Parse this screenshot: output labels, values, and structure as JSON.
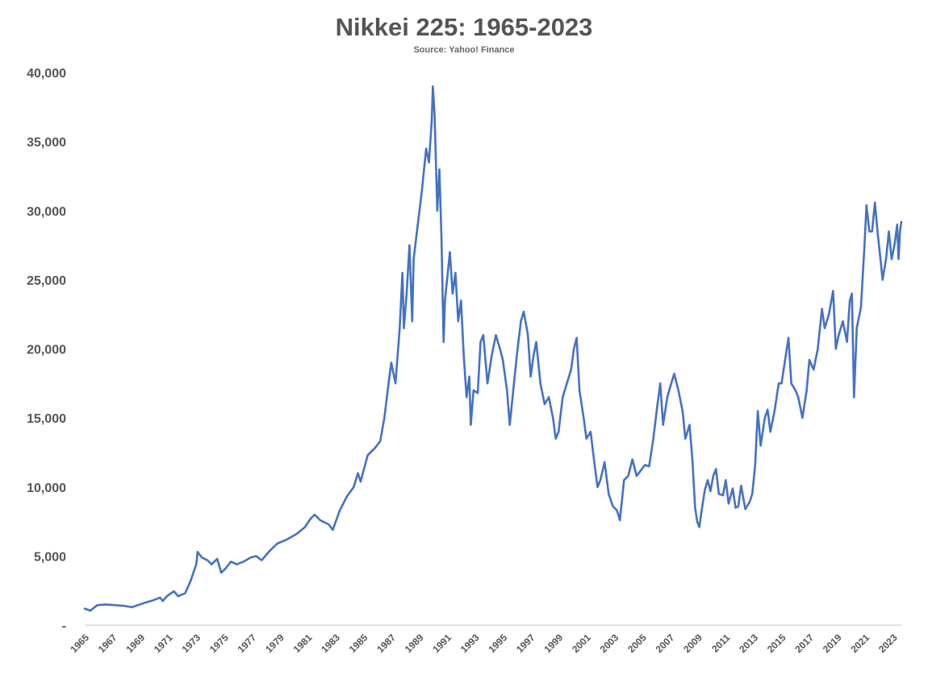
{
  "chart_data": {
    "type": "line",
    "title": "Nikkei 225: 1965-2023",
    "subtitle": "Source: Yahoo! Finance",
    "xlabel": "",
    "ylabel": "",
    "xlim": [
      1965,
      2023.6
    ],
    "ylim": [
      0,
      40000
    ],
    "grid": false,
    "line_color": "#4472C4",
    "axis_color": "#D9D9D9",
    "ytick_labels": [
      "-",
      "5,000",
      "10,000",
      "15,000",
      "20,000",
      "25,000",
      "30,000",
      "35,000",
      "40,000"
    ],
    "ytick_values": [
      0,
      5000,
      10000,
      15000,
      20000,
      25000,
      30000,
      35000,
      40000
    ],
    "xtick_labels": [
      "1965",
      "1967",
      "1969",
      "1971",
      "1973",
      "1975",
      "1977",
      "1979",
      "1981",
      "1983",
      "1985",
      "1987",
      "1989",
      "1991",
      "1993",
      "1995",
      "1997",
      "1999",
      "2001",
      "2003",
      "2005",
      "2007",
      "2009",
      "2011",
      "2013",
      "2015",
      "2017",
      "2019",
      "2021",
      "2023"
    ],
    "series": [
      {
        "values": [
          [
            1965.0,
            1200
          ],
          [
            1965.4,
            1050
          ],
          [
            1965.9,
            1450
          ],
          [
            1966.5,
            1500
          ],
          [
            1967.2,
            1450
          ],
          [
            1967.8,
            1400
          ],
          [
            1968.4,
            1300
          ],
          [
            1968.8,
            1450
          ],
          [
            1969.4,
            1650
          ],
          [
            1969.9,
            1800
          ],
          [
            1970.4,
            2000
          ],
          [
            1970.6,
            1750
          ],
          [
            1970.9,
            2100
          ],
          [
            1971.4,
            2450
          ],
          [
            1971.7,
            2100
          ],
          [
            1972.2,
            2300
          ],
          [
            1972.6,
            3200
          ],
          [
            1973.0,
            4400
          ],
          [
            1973.1,
            5300
          ],
          [
            1973.4,
            4900
          ],
          [
            1973.8,
            4700
          ],
          [
            1974.1,
            4400
          ],
          [
            1974.5,
            4800
          ],
          [
            1974.8,
            3800
          ],
          [
            1975.1,
            4100
          ],
          [
            1975.5,
            4600
          ],
          [
            1975.9,
            4400
          ],
          [
            1976.4,
            4600
          ],
          [
            1976.9,
            4900
          ],
          [
            1977.3,
            5000
          ],
          [
            1977.7,
            4700
          ],
          [
            1978.2,
            5300
          ],
          [
            1978.8,
            5900
          ],
          [
            1979.5,
            6200
          ],
          [
            1980.2,
            6600
          ],
          [
            1980.8,
            7100
          ],
          [
            1981.2,
            7700
          ],
          [
            1981.5,
            8000
          ],
          [
            1981.9,
            7600
          ],
          [
            1982.5,
            7300
          ],
          [
            1982.8,
            6900
          ],
          [
            1983.3,
            8300
          ],
          [
            1983.8,
            9300
          ],
          [
            1984.3,
            10000
          ],
          [
            1984.6,
            11000
          ],
          [
            1984.8,
            10400
          ],
          [
            1985.3,
            12300
          ],
          [
            1985.8,
            12800
          ],
          [
            1986.2,
            13300
          ],
          [
            1986.5,
            15000
          ],
          [
            1986.8,
            17500
          ],
          [
            1987.0,
            19000
          ],
          [
            1987.3,
            17500
          ],
          [
            1987.6,
            21500
          ],
          [
            1987.8,
            25500
          ],
          [
            1987.9,
            21500
          ],
          [
            1988.1,
            24000
          ],
          [
            1988.3,
            27500
          ],
          [
            1988.5,
            22000
          ],
          [
            1988.6,
            26500
          ],
          [
            1988.9,
            29000
          ],
          [
            1989.2,
            31500
          ],
          [
            1989.5,
            34500
          ],
          [
            1989.7,
            33500
          ],
          [
            1989.9,
            36500
          ],
          [
            1989.98,
            39000
          ],
          [
            1990.1,
            37000
          ],
          [
            1990.3,
            30000
          ],
          [
            1990.45,
            33000
          ],
          [
            1990.6,
            28000
          ],
          [
            1990.75,
            20500
          ],
          [
            1990.85,
            23500
          ],
          [
            1991.0,
            25000
          ],
          [
            1991.2,
            27000
          ],
          [
            1991.4,
            24000
          ],
          [
            1991.6,
            25500
          ],
          [
            1991.8,
            22000
          ],
          [
            1992.0,
            23500
          ],
          [
            1992.2,
            19500
          ],
          [
            1992.4,
            16500
          ],
          [
            1992.6,
            18000
          ],
          [
            1992.7,
            14500
          ],
          [
            1992.9,
            17000
          ],
          [
            1993.2,
            16800
          ],
          [
            1993.4,
            20500
          ],
          [
            1993.6,
            21000
          ],
          [
            1993.9,
            17500
          ],
          [
            1994.2,
            19500
          ],
          [
            1994.5,
            21000
          ],
          [
            1994.8,
            20000
          ],
          [
            1995.0,
            19200
          ],
          [
            1995.3,
            17000
          ],
          [
            1995.5,
            14500
          ],
          [
            1995.8,
            17500
          ],
          [
            1996.0,
            19500
          ],
          [
            1996.3,
            22000
          ],
          [
            1996.5,
            22700
          ],
          [
            1996.8,
            21000
          ],
          [
            1997.0,
            18000
          ],
          [
            1997.2,
            19500
          ],
          [
            1997.4,
            20500
          ],
          [
            1997.7,
            17500
          ],
          [
            1998.0,
            16000
          ],
          [
            1998.3,
            16500
          ],
          [
            1998.6,
            15000
          ],
          [
            1998.8,
            13500
          ],
          [
            1999.0,
            14000
          ],
          [
            1999.3,
            16500
          ],
          [
            1999.6,
            17500
          ],
          [
            1999.9,
            18500
          ],
          [
            2000.1,
            20000
          ],
          [
            2000.3,
            20800
          ],
          [
            2000.5,
            17000
          ],
          [
            2000.8,
            15000
          ],
          [
            2001.0,
            13500
          ],
          [
            2001.3,
            14000
          ],
          [
            2001.6,
            11500
          ],
          [
            2001.8,
            10000
          ],
          [
            2002.0,
            10500
          ],
          [
            2002.3,
            11800
          ],
          [
            2002.6,
            9500
          ],
          [
            2002.9,
            8600
          ],
          [
            2003.2,
            8300
          ],
          [
            2003.4,
            7600
          ],
          [
            2003.7,
            10500
          ],
          [
            2004.0,
            10800
          ],
          [
            2004.3,
            12000
          ],
          [
            2004.6,
            10800
          ],
          [
            2004.9,
            11200
          ],
          [
            2005.2,
            11600
          ],
          [
            2005.5,
            11500
          ],
          [
            2005.8,
            13500
          ],
          [
            2006.1,
            16000
          ],
          [
            2006.3,
            17500
          ],
          [
            2006.5,
            14500
          ],
          [
            2006.8,
            16500
          ],
          [
            2007.0,
            17200
          ],
          [
            2007.3,
            18200
          ],
          [
            2007.6,
            17000
          ],
          [
            2007.9,
            15500
          ],
          [
            2008.1,
            13500
          ],
          [
            2008.4,
            14500
          ],
          [
            2008.6,
            12000
          ],
          [
            2008.8,
            8500
          ],
          [
            2008.95,
            7500
          ],
          [
            2009.1,
            7100
          ],
          [
            2009.3,
            8500
          ],
          [
            2009.5,
            9800
          ],
          [
            2009.7,
            10500
          ],
          [
            2009.9,
            9700
          ],
          [
            2010.1,
            10800
          ],
          [
            2010.3,
            11300
          ],
          [
            2010.5,
            9500
          ],
          [
            2010.8,
            9400
          ],
          [
            2011.0,
            10500
          ],
          [
            2011.2,
            8800
          ],
          [
            2011.5,
            9900
          ],
          [
            2011.7,
            8500
          ],
          [
            2011.9,
            8600
          ],
          [
            2012.1,
            10100
          ],
          [
            2012.4,
            8400
          ],
          [
            2012.7,
            8900
          ],
          [
            2012.9,
            9500
          ],
          [
            2013.1,
            11500
          ],
          [
            2013.3,
            15500
          ],
          [
            2013.5,
            13000
          ],
          [
            2013.8,
            15000
          ],
          [
            2014.0,
            15600
          ],
          [
            2014.2,
            14000
          ],
          [
            2014.5,
            15500
          ],
          [
            2014.8,
            17500
          ],
          [
            2015.0,
            17500
          ],
          [
            2015.3,
            19500
          ],
          [
            2015.5,
            20800
          ],
          [
            2015.7,
            17500
          ],
          [
            2016.0,
            17000
          ],
          [
            2016.2,
            16500
          ],
          [
            2016.5,
            15000
          ],
          [
            2016.8,
            17000
          ],
          [
            2017.0,
            19200
          ],
          [
            2017.3,
            18500
          ],
          [
            2017.6,
            20000
          ],
          [
            2017.9,
            22900
          ],
          [
            2018.1,
            21500
          ],
          [
            2018.4,
            22500
          ],
          [
            2018.7,
            24200
          ],
          [
            2018.9,
            20000
          ],
          [
            2019.1,
            21000
          ],
          [
            2019.4,
            22000
          ],
          [
            2019.7,
            20500
          ],
          [
            2019.9,
            23500
          ],
          [
            2020.05,
            24000
          ],
          [
            2020.2,
            16500
          ],
          [
            2020.4,
            21500
          ],
          [
            2020.7,
            23000
          ],
          [
            2020.95,
            27400
          ],
          [
            2021.1,
            30400
          ],
          [
            2021.3,
            28500
          ],
          [
            2021.5,
            28500
          ],
          [
            2021.7,
            30600
          ],
          [
            2021.9,
            28400
          ],
          [
            2022.1,
            26500
          ],
          [
            2022.25,
            25000
          ],
          [
            2022.5,
            26500
          ],
          [
            2022.7,
            28500
          ],
          [
            2022.9,
            26500
          ],
          [
            2023.1,
            27500
          ],
          [
            2023.3,
            29000
          ],
          [
            2023.4,
            26500
          ],
          [
            2023.5,
            28500
          ],
          [
            2023.6,
            29200
          ]
        ]
      }
    ]
  }
}
